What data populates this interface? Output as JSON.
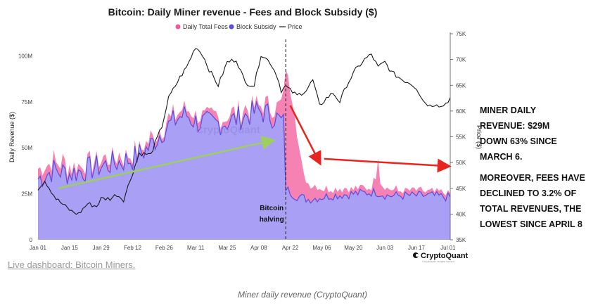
{
  "chart_data": {
    "type": "area",
    "title": "Bitcoin: Daily Miner revenue - Fees and Block Subsidy ($)",
    "legend": [
      {
        "name": "Daily Total Fees",
        "color": "#f2589a",
        "marker": "dot"
      },
      {
        "name": "Block Subsidy",
        "color": "#5b4be0",
        "marker": "dot"
      },
      {
        "name": "Price",
        "color": "#1a1a1a",
        "marker": "line"
      }
    ],
    "ylabel": "Daily Revenue ($)",
    "y2label": "Price ($)",
    "ylim": [
      0,
      112000000
    ],
    "y2lim": [
      35000,
      75000
    ],
    "yticks": [
      0,
      25000000,
      50000000,
      75000000,
      100000000
    ],
    "ytick_labels": [
      "0",
      "25M",
      "50M",
      "75M",
      "100M"
    ],
    "y2ticks": [
      35000,
      40000,
      45000,
      50000,
      55000,
      60000,
      65000,
      70000,
      75000
    ],
    "y2tick_labels": [
      "35K",
      "40K",
      "45K",
      "50K",
      "55K",
      "60K",
      "65K",
      "70K",
      "75K"
    ],
    "xlim": [
      0,
      183
    ],
    "xticks": [
      0,
      14,
      28,
      42,
      56,
      70,
      84,
      98,
      112,
      126,
      140,
      154,
      168,
      182
    ],
    "xtick_labels": [
      "Jan 01",
      "Jan 15",
      "Jan 29",
      "Feb 12",
      "Feb 26",
      "Mar 11",
      "Mar 25",
      "Apr 08",
      "Apr 22",
      "May 06",
      "May 20",
      "Jun 03",
      "Jun 17",
      "Jul 01"
    ],
    "halving_day": 110,
    "halving_label": [
      "Bitcoin",
      "halving"
    ],
    "subsidy_keyframes": [
      [
        0,
        33
      ],
      [
        7,
        38
      ],
      [
        14,
        36
      ],
      [
        21,
        38
      ],
      [
        28,
        40
      ],
      [
        35,
        42
      ],
      [
        42,
        44
      ],
      [
        49,
        50
      ],
      [
        56,
        60
      ],
      [
        63,
        67
      ],
      [
        66,
        68
      ],
      [
        70,
        64
      ],
      [
        77,
        63
      ],
      [
        84,
        64
      ],
      [
        91,
        67
      ],
      [
        98,
        70
      ],
      [
        105,
        67
      ],
      [
        109,
        63
      ],
      [
        110,
        28
      ],
      [
        114,
        24
      ],
      [
        120,
        22
      ],
      [
        130,
        24
      ],
      [
        140,
        25
      ],
      [
        150,
        26
      ],
      [
        155,
        24
      ],
      [
        165,
        24
      ],
      [
        175,
        24
      ],
      [
        183,
        23
      ]
    ],
    "fee_keyframes": [
      [
        0,
        5
      ],
      [
        14,
        4
      ],
      [
        28,
        3
      ],
      [
        42,
        3
      ],
      [
        56,
        3
      ],
      [
        70,
        3
      ],
      [
        84,
        3
      ],
      [
        98,
        3
      ],
      [
        105,
        5
      ],
      [
        109,
        12
      ],
      [
        110,
        65
      ],
      [
        112,
        55
      ],
      [
        114,
        45
      ],
      [
        116,
        25
      ],
      [
        118,
        12
      ],
      [
        121,
        8
      ],
      [
        125,
        5
      ],
      [
        130,
        4
      ],
      [
        140,
        3
      ],
      [
        148,
        3
      ],
      [
        150,
        8
      ],
      [
        151,
        20
      ],
      [
        152,
        7
      ],
      [
        155,
        3
      ],
      [
        183,
        2
      ]
    ],
    "price_keyframes": [
      [
        0,
        45000
      ],
      [
        3,
        46500
      ],
      [
        8,
        43000
      ],
      [
        12,
        41500
      ],
      [
        15,
        40500
      ],
      [
        18,
        40000
      ],
      [
        22,
        42000
      ],
      [
        26,
        41500
      ],
      [
        28,
        43000
      ],
      [
        32,
        43000
      ],
      [
        35,
        43800
      ],
      [
        38,
        42800
      ],
      [
        42,
        48000
      ],
      [
        45,
        51800
      ],
      [
        50,
        51500
      ],
      [
        55,
        57000
      ],
      [
        58,
        62500
      ],
      [
        63,
        66500
      ],
      [
        66,
        68500
      ],
      [
        70,
        72500
      ],
      [
        73,
        71000
      ],
      [
        76,
        68000
      ],
      [
        80,
        65000
      ],
      [
        84,
        69500
      ],
      [
        88,
        70000
      ],
      [
        92,
        65500
      ],
      [
        96,
        65000
      ],
      [
        99,
        71000
      ],
      [
        103,
        69500
      ],
      [
        106,
        67000
      ],
      [
        108,
        64000
      ],
      [
        110,
        64800
      ],
      [
        112,
        64000
      ],
      [
        115,
        63000
      ],
      [
        119,
        64000
      ],
      [
        122,
        66000
      ],
      [
        125,
        61000
      ],
      [
        128,
        62500
      ],
      [
        131,
        63500
      ],
      [
        134,
        61800
      ],
      [
        137,
        65000
      ],
      [
        141,
        68000
      ],
      [
        145,
        70000
      ],
      [
        148,
        71000
      ],
      [
        151,
        68500
      ],
      [
        154,
        69500
      ],
      [
        157,
        67500
      ],
      [
        162,
        66000
      ],
      [
        165,
        65500
      ],
      [
        168,
        64500
      ],
      [
        171,
        62000
      ],
      [
        174,
        61000
      ],
      [
        177,
        61500
      ],
      [
        179,
        60800
      ],
      [
        181,
        61500
      ],
      [
        183,
        62500
      ]
    ]
  },
  "annotations": {
    "halving_arrow_note": "",
    "block1": [
      "MINER DAILY",
      "REVENUE: $29M",
      "DOWN 63% SINCE",
      "MARCH 6."
    ],
    "block2": [
      "MOREOVER, FEES HAVE",
      "DECLINED TO 3.2% OF",
      "TOTAL REVENUES, THE",
      "LOWEST SINCE APRIL 8"
    ]
  },
  "watermark": "CryptoQuant",
  "brand": {
    "name": "CryptoQuant",
    "tagline": "© CryptoQuant. All rights reserved."
  },
  "link_text": "Live dashboard: Bitcoin Miners.",
  "caption": "Miner daily revenue (CryptoQuant)",
  "colors": {
    "fees": "#f2589a",
    "subsidy": "#a9a0f5",
    "subsidy_line": "#5b4be0",
    "price": "#1a1a1a",
    "arrow_red": "#e8241f",
    "arrow_green": "#9ccf5d"
  }
}
